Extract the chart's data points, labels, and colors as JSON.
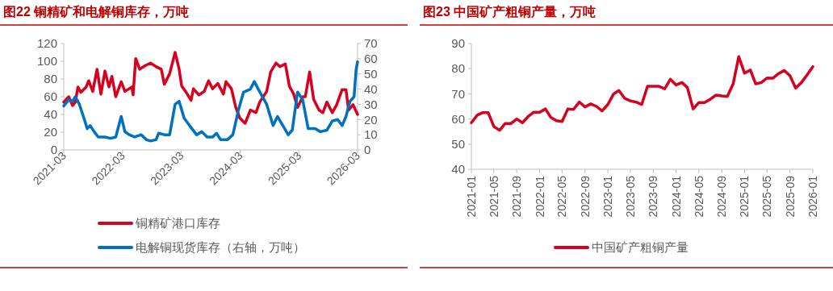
{
  "chart_data": [
    {
      "type": "line",
      "title": "图22  铜精矿和电解铜库存，万吨",
      "xlim": [
        "2021-03",
        "2026-03"
      ],
      "xticks": [
        "2021-03",
        "2022-03",
        "2023-03",
        "2024-03",
        "2025-03",
        "2026-03"
      ],
      "ylim": [
        0,
        120
      ],
      "yticks": [
        0,
        20,
        40,
        60,
        80,
        100,
        120
      ],
      "y2lim": [
        0,
        70
      ],
      "y2ticks": [
        0,
        10,
        20,
        30,
        40,
        50,
        60,
        70
      ],
      "legend": "bottom",
      "series": [
        {
          "name": "铜精矿港口库存",
          "color": "#d7001f",
          "x": [
            "2021-03-01",
            "2021-04-01",
            "2021-04-25",
            "2021-05-12",
            "2021-05-28",
            "2021-06-15",
            "2021-07-18",
            "2021-08-03",
            "2021-08-28",
            "2021-09-24",
            "2021-10-18",
            "2021-11-12",
            "2021-12-07",
            "2021-12-25",
            "2022-01-18",
            "2022-02-21",
            "2022-03-16",
            "2022-04-28",
            "2022-05-06",
            "2022-05-22",
            "2022-06-16",
            "2022-07-19",
            "2022-08-22",
            "2022-09-25",
            "2022-10-28",
            "2022-11-16",
            "2022-12-19",
            "2023-01-22",
            "2023-02-16",
            "2023-03-04",
            "2023-03-28",
            "2023-05-01",
            "2023-05-16",
            "2023-06-19",
            "2023-07-22",
            "2023-08-18",
            "2023-09-12",
            "2023-10-15",
            "2023-11-18",
            "2023-12-04",
            "2024-01-07",
            "2024-02-03",
            "2024-02-28",
            "2024-04-01",
            "2024-05-04",
            "2024-06-07",
            "2024-07-01",
            "2024-08-13",
            "2024-09-07",
            "2024-10-10",
            "2024-11-04",
            "2024-12-07",
            "2025-01-01",
            "2025-01-28",
            "2025-02-21",
            "2025-03-25",
            "2025-04-10",
            "2025-05-07",
            "2025-06-01",
            "2025-07-04",
            "2025-07-28",
            "2025-08-22",
            "2025-09-25",
            "2025-10-22",
            "2025-11-25",
            "2025-12-19",
            "2026-01-04",
            "2026-02-01",
            "2026-03-01"
          ],
          "values": [
            54,
            60,
            50,
            54,
            71,
            65,
            71,
            78,
            66,
            91,
            63,
            89,
            71,
            83,
            60,
            77,
            66,
            71,
            62,
            103,
            91,
            95,
            98,
            94,
            91,
            74,
            86,
            110,
            91,
            72,
            66,
            56,
            69,
            62,
            66,
            78,
            69,
            75,
            63,
            77,
            69,
            48,
            36,
            30,
            45,
            42,
            54,
            66,
            88,
            98,
            94,
            97,
            72,
            63,
            48,
            60,
            60,
            88,
            57,
            45,
            42,
            54,
            42,
            51,
            68,
            68,
            45,
            51,
            40
          ]
        },
        {
          "name": "电解铜现货库存（右轴，万吨）",
          "color": "#0070c0",
          "axis": "y2",
          "x": [
            "2021-03-01",
            "2021-04-01",
            "2021-04-25",
            "2021-05-12",
            "2021-06-06",
            "2021-07-01",
            "2021-07-25",
            "2021-08-12",
            "2021-09-06",
            "2021-10-01",
            "2021-11-12",
            "2021-12-16",
            "2022-01-18",
            "2022-02-21",
            "2022-03-16",
            "2022-04-12",
            "2022-05-15",
            "2022-06-25",
            "2022-07-28",
            "2022-08-22",
            "2022-09-25",
            "2022-10-12",
            "2022-11-16",
            "2022-12-19",
            "2023-01-22",
            "2023-02-16",
            "2023-03-19",
            "2023-04-22",
            "2023-06-04",
            "2023-07-07",
            "2023-08-09",
            "2023-09-12",
            "2023-10-06",
            "2023-11-01",
            "2023-12-13",
            "2024-01-16",
            "2024-02-19",
            "2024-03-22",
            "2024-05-04",
            "2024-05-28",
            "2024-06-22",
            "2024-08-13",
            "2024-09-22",
            "2024-10-19",
            "2024-11-22",
            "2024-12-25",
            "2025-01-19",
            "2025-02-21",
            "2025-03-25",
            "2025-04-28",
            "2025-06-10",
            "2025-07-13",
            "2025-08-22",
            "2025-09-25",
            "2025-10-28",
            "2025-11-25",
            "2025-12-19",
            "2026-01-13",
            "2026-02-07",
            "2026-02-20",
            "2026-03-01"
          ],
          "values": [
            29,
            33,
            32,
            35,
            30,
            22,
            14,
            16,
            12,
            8.5,
            8.5,
            7.6,
            8.5,
            22,
            12,
            10,
            8.5,
            10,
            6.7,
            5.9,
            6.7,
            11,
            10,
            10,
            30,
            32,
            21,
            16,
            10,
            12,
            8.5,
            8.5,
            11,
            6.7,
            6.7,
            10,
            26,
            38,
            40,
            45,
            40,
            30,
            16,
            22,
            16,
            10,
            13,
            38,
            33,
            14,
            14,
            12,
            13,
            19,
            20,
            16,
            22,
            32,
            35,
            53,
            58
          ]
        }
      ]
    },
    {
      "type": "line",
      "title": "图23  中国矿产粗铜产量，万吨",
      "xlim": [
        "2021-01",
        "2026-01"
      ],
      "xticks": [
        "2021-01",
        "2021-05",
        "2021-09",
        "2022-01",
        "2022-05",
        "2022-09",
        "2023-01",
        "2023-05",
        "2023-09",
        "2024-01",
        "2024-05",
        "2024-09",
        "2025-01",
        "2025-05",
        "2025-09",
        "2026-01"
      ],
      "ylim": [
        40,
        90
      ],
      "yticks": [
        40,
        50,
        60,
        70,
        80,
        90
      ],
      "legend": "bottom",
      "series": [
        {
          "name": "中国矿产粗铜产量",
          "color": "#d7001f",
          "x": [
            "2021-01",
            "2021-02",
            "2021-03",
            "2021-04",
            "2021-05",
            "2021-06",
            "2021-07",
            "2021-08",
            "2021-09",
            "2021-10",
            "2021-11",
            "2021-12",
            "2022-01",
            "2022-02",
            "2022-03",
            "2022-04",
            "2022-05",
            "2022-06",
            "2022-07",
            "2022-08",
            "2022-09",
            "2022-10",
            "2022-11",
            "2022-12",
            "2023-01",
            "2023-02",
            "2023-03",
            "2023-04",
            "2023-05",
            "2023-06",
            "2023-07",
            "2023-08",
            "2023-09",
            "2023-10",
            "2023-11",
            "2023-12",
            "2024-01",
            "2024-02",
            "2024-03",
            "2024-04",
            "2024-05",
            "2024-06",
            "2024-07",
            "2024-08",
            "2024-09",
            "2024-10",
            "2024-11",
            "2024-12",
            "2025-01",
            "2025-02",
            "2025-03",
            "2025-04",
            "2025-05",
            "2025-06",
            "2025-07",
            "2025-08",
            "2025-09",
            "2025-10",
            "2025-11",
            "2025-12",
            "2026-01"
          ],
          "values": [
            58.5,
            61.5,
            62.5,
            62.5,
            57,
            55.5,
            58.2,
            58.2,
            60,
            58.5,
            61,
            62.7,
            62.7,
            64,
            60.7,
            59.3,
            59,
            64,
            63.8,
            66.7,
            64.8,
            66,
            65,
            63.2,
            65.8,
            70,
            71.3,
            68.2,
            67.2,
            66.7,
            65.8,
            73,
            73,
            73,
            72,
            75.8,
            73.5,
            74.5,
            72.5,
            64,
            66.5,
            66.5,
            67.8,
            69.5,
            69.2,
            69,
            74,
            84.8,
            78.2,
            79.5,
            74,
            74.5,
            76.3,
            76.2,
            78,
            79.3,
            77.2,
            72.3,
            74.5,
            77.5,
            80.8
          ]
        }
      ]
    }
  ]
}
